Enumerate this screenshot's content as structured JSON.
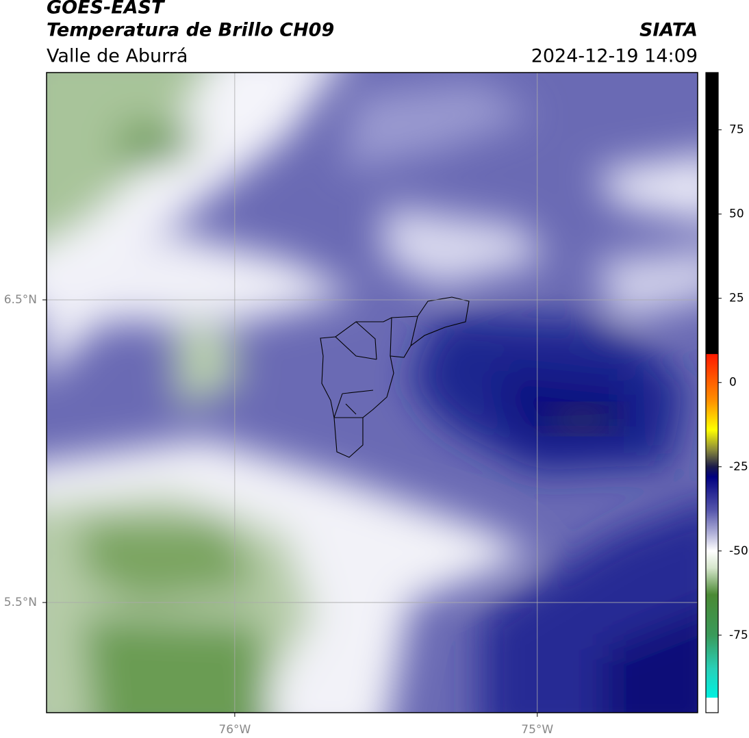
{
  "header": {
    "satellite": "GOES-EAST",
    "product": "Temperatura de Brillo CH09",
    "region": "Valle de Aburrá",
    "source": "SIATA",
    "datetime": "2024-12-19 14:09"
  },
  "map": {
    "xlim": [
      -76.622,
      -74.47
    ],
    "ylim": [
      5.136,
      7.251
    ],
    "xticks": [
      {
        "value": -76,
        "label": "76°W"
      },
      {
        "value": -75,
        "label": "75°W"
      }
    ],
    "yticks": [
      {
        "value": 6.5,
        "label": "6.5°N"
      },
      {
        "value": 5.5,
        "label": "5.5°N"
      }
    ],
    "grid": true,
    "grid_color": "#aaaaaa"
  },
  "colorbar": {
    "lim": [
      -98,
      92
    ],
    "ticks": [
      75,
      50,
      25,
      0,
      -25,
      -50,
      -75
    ],
    "stops": [
      {
        "value": 92,
        "color": "#000000"
      },
      {
        "value": 8.5,
        "color": "#000000"
      },
      {
        "value": 8.4,
        "color": "#ff1a00"
      },
      {
        "value": -5,
        "color": "#ff8c00"
      },
      {
        "value": -14,
        "color": "#ffff00"
      },
      {
        "value": -20,
        "color": "#8a8a3a"
      },
      {
        "value": -25,
        "color": "#1a1a4a"
      },
      {
        "value": -28,
        "color": "#000080"
      },
      {
        "value": -38,
        "color": "#5656ac"
      },
      {
        "value": -45,
        "color": "#b4b4da"
      },
      {
        "value": -50,
        "color": "#ffffff"
      },
      {
        "value": -55,
        "color": "#d6e6cc"
      },
      {
        "value": -63,
        "color": "#4a8a34"
      },
      {
        "value": -75,
        "color": "#3a9a5a"
      },
      {
        "value": -85,
        "color": "#28d0b8"
      },
      {
        "value": -93.5,
        "color": "#00f0e0"
      },
      {
        "value": -93.6,
        "color": "#ffffff"
      },
      {
        "value": -98,
        "color": "#ffffff"
      }
    ]
  }
}
